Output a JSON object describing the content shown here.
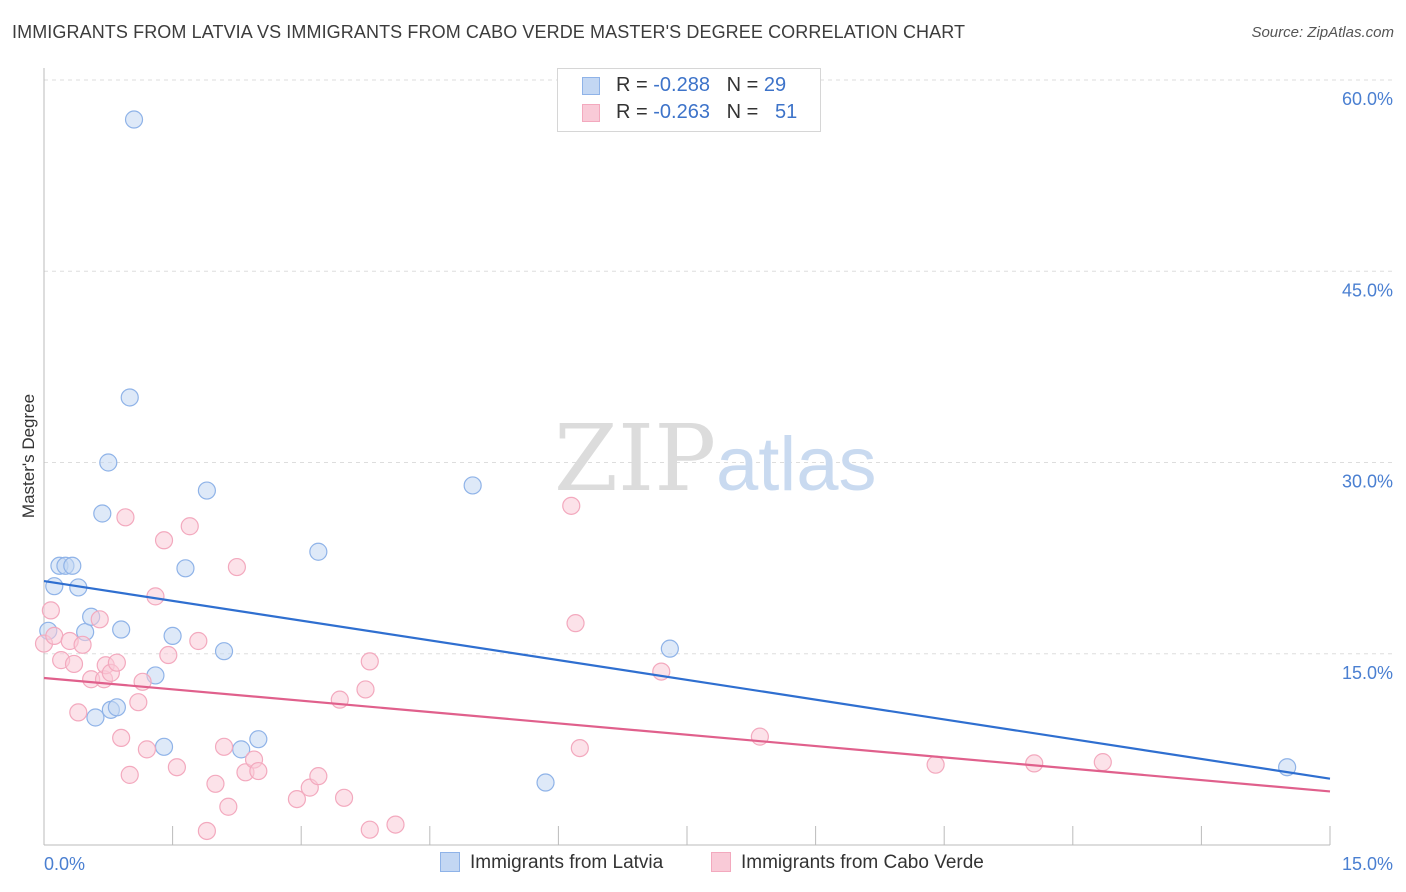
{
  "chart_data": {
    "type": "scatter",
    "title": "IMMIGRANTS FROM LATVIA VS IMMIGRANTS FROM CABO VERDE MASTER'S DEGREE CORRELATION CHART",
    "source": "Source: ZipAtlas.com",
    "ylabel": "Master's Degree",
    "xlabel": "",
    "xlim": [
      0,
      15
    ],
    "ylim": [
      0,
      60
    ],
    "x_tick_labels": [
      "0.0%",
      "15.0%"
    ],
    "y_tick_values": [
      15,
      30,
      45,
      60
    ],
    "y_tick_labels": [
      "15.0%",
      "30.0%",
      "45.0%",
      "60.0%"
    ],
    "watermark": {
      "zip": "ZIP",
      "atlas": "atlas"
    },
    "legend": {
      "rows": [
        {
          "r_label": "R = ",
          "r_value": "-0.288",
          "n_label": "N = ",
          "n_value": "29"
        },
        {
          "r_label": "R = ",
          "r_value": "-0.263",
          "n_label": "N = ",
          "n_value": "51"
        }
      ]
    },
    "series": [
      {
        "name": "Immigrants from Latvia",
        "color": "#8fb3e8",
        "fill": "#c3d7f3",
        "line_color": "#2f6fd0",
        "trend": {
          "x": [
            0,
            15
          ],
          "y": [
            20.7,
            5.2
          ]
        },
        "points": [
          [
            0.05,
            16.8
          ],
          [
            0.12,
            20.3
          ],
          [
            0.18,
            21.9
          ],
          [
            0.25,
            21.9
          ],
          [
            0.33,
            21.9
          ],
          [
            0.4,
            20.2
          ],
          [
            0.48,
            16.7
          ],
          [
            0.55,
            17.9
          ],
          [
            0.6,
            10.0
          ],
          [
            0.68,
            26.0
          ],
          [
            0.78,
            10.6
          ],
          [
            0.75,
            30.0
          ],
          [
            0.85,
            10.8
          ],
          [
            0.9,
            16.9
          ],
          [
            1.0,
            35.1
          ],
          [
            1.05,
            56.9
          ],
          [
            1.3,
            13.3
          ],
          [
            1.4,
            7.7
          ],
          [
            1.5,
            16.4
          ],
          [
            1.65,
            21.7
          ],
          [
            1.9,
            27.8
          ],
          [
            2.1,
            15.2
          ],
          [
            2.3,
            7.5
          ],
          [
            2.5,
            8.3
          ],
          [
            3.2,
            23.0
          ],
          [
            5.0,
            28.2
          ],
          [
            5.85,
            4.9
          ],
          [
            7.3,
            15.4
          ],
          [
            14.5,
            6.1
          ]
        ]
      },
      {
        "name": "Immigrants from Cabo Verde",
        "color": "#f3a9be",
        "fill": "#f9cad7",
        "line_color": "#e0608c",
        "trend": {
          "x": [
            0,
            15
          ],
          "y": [
            13.1,
            4.2
          ]
        },
        "points": [
          [
            0.0,
            15.8
          ],
          [
            0.08,
            18.4
          ],
          [
            0.12,
            16.4
          ],
          [
            0.2,
            14.5
          ],
          [
            0.3,
            16.0
          ],
          [
            0.35,
            14.2
          ],
          [
            0.4,
            10.4
          ],
          [
            0.45,
            15.7
          ],
          [
            0.55,
            13.0
          ],
          [
            0.65,
            17.7
          ],
          [
            0.7,
            13.0
          ],
          [
            0.72,
            14.1
          ],
          [
            0.78,
            13.5
          ],
          [
            0.85,
            14.3
          ],
          [
            0.9,
            8.4
          ],
          [
            0.95,
            25.7
          ],
          [
            1.0,
            5.5
          ],
          [
            1.1,
            11.2
          ],
          [
            1.15,
            12.8
          ],
          [
            1.2,
            7.5
          ],
          [
            1.3,
            19.5
          ],
          [
            1.4,
            23.9
          ],
          [
            1.45,
            14.9
          ],
          [
            1.55,
            6.1
          ],
          [
            1.7,
            25.0
          ],
          [
            1.8,
            16.0
          ],
          [
            1.9,
            1.1
          ],
          [
            2.0,
            4.8
          ],
          [
            2.1,
            7.7
          ],
          [
            2.15,
            3.0
          ],
          [
            2.25,
            21.8
          ],
          [
            2.35,
            5.7
          ],
          [
            2.45,
            6.7
          ],
          [
            2.5,
            5.8
          ],
          [
            2.95,
            3.6
          ],
          [
            3.1,
            4.5
          ],
          [
            3.2,
            5.4
          ],
          [
            3.45,
            11.4
          ],
          [
            3.5,
            3.7
          ],
          [
            3.75,
            12.2
          ],
          [
            3.8,
            14.4
          ],
          [
            3.8,
            1.2
          ],
          [
            4.1,
            1.6
          ],
          [
            6.15,
            26.6
          ],
          [
            6.2,
            17.4
          ],
          [
            6.25,
            7.6
          ],
          [
            7.2,
            13.6
          ],
          [
            8.35,
            8.5
          ],
          [
            10.4,
            6.3
          ],
          [
            11.55,
            6.4
          ],
          [
            12.35,
            6.5
          ]
        ]
      }
    ]
  }
}
